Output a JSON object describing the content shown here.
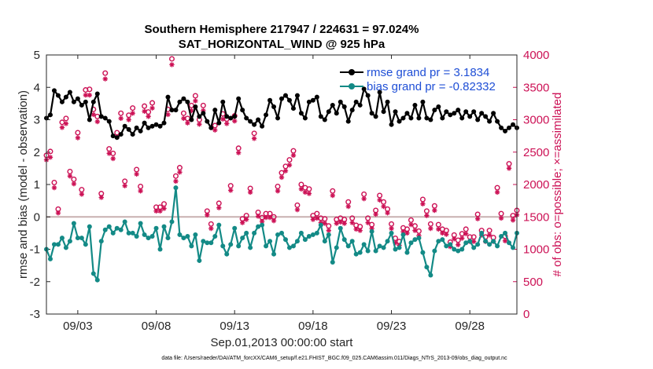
{
  "chart_data": {
    "type": "line",
    "title": [
      "Southern Hemisphere 217947 / 224631 = 97.024%",
      "SAT_HORIZONTAL_WIND @ 925 hPa"
    ],
    "xlabel": "Sep.01,2013 00:00:00 start",
    "ylabel_left": "rmse and bias (model - observation)",
    "ylabel_right": "# of obs: o=possible; ×=assimilated",
    "xlim": [
      1,
      31
    ],
    "ylim_left": [
      -3,
      5
    ],
    "ylim_right": [
      0,
      4000
    ],
    "x_ticks": [
      {
        "x": 3,
        "label": "09/03"
      },
      {
        "x": 8,
        "label": "09/08"
      },
      {
        "x": 13,
        "label": "09/13"
      },
      {
        "x": 18,
        "label": "09/18"
      },
      {
        "x": 23,
        "label": "09/23"
      },
      {
        "x": 28,
        "label": "09/28"
      }
    ],
    "y_ticks_left": [
      -3,
      -2,
      -1,
      0,
      1,
      2,
      3,
      4,
      5
    ],
    "y_ticks_right": [
      0,
      500,
      1000,
      1500,
      2000,
      2500,
      3000,
      3500,
      4000
    ],
    "legend": [
      {
        "label": "rmse grand pr = 3.1834",
        "color": "#000000"
      },
      {
        "label": "bias grand pr = -0.82332",
        "color": "#138a86"
      }
    ],
    "colors": {
      "rmse": "#000000",
      "bias": "#138a86",
      "obs": "#cc1155",
      "zero_line": "#c8b0b0",
      "right_axis": "#cc1155"
    },
    "series": [
      {
        "name": "rmse",
        "axis": "left",
        "x": [
          1.0,
          1.25,
          1.5,
          1.75,
          2.0,
          2.25,
          2.5,
          2.75,
          3.0,
          3.25,
          3.5,
          3.75,
          4.0,
          4.25,
          4.5,
          4.75,
          5.0,
          5.25,
          5.5,
          5.75,
          6.0,
          6.25,
          6.5,
          6.75,
          7.0,
          7.25,
          7.5,
          7.75,
          8.0,
          8.25,
          8.5,
          8.75,
          9.0,
          9.25,
          9.5,
          9.75,
          10.0,
          10.25,
          10.5,
          10.75,
          11.0,
          11.25,
          11.5,
          11.75,
          12.0,
          12.25,
          12.5,
          12.75,
          13.0,
          13.25,
          13.5,
          13.75,
          14.0,
          14.25,
          14.5,
          14.75,
          15.0,
          15.25,
          15.5,
          15.75,
          16.0,
          16.25,
          16.5,
          16.75,
          17.0,
          17.25,
          17.5,
          17.75,
          18.0,
          18.25,
          18.5,
          18.75,
          19.0,
          19.25,
          19.5,
          19.75,
          20.0,
          20.25,
          20.5,
          20.75,
          21.0,
          21.25,
          21.5,
          21.75,
          22.0,
          22.25,
          22.5,
          22.75,
          23.0,
          23.25,
          23.5,
          23.75,
          24.0,
          24.25,
          24.5,
          24.75,
          25.0,
          25.25,
          25.5,
          25.75,
          26.0,
          26.25,
          26.5,
          26.75,
          27.0,
          27.25,
          27.5,
          27.75,
          28.0,
          28.25,
          28.5,
          28.75,
          29.0,
          29.25,
          29.5,
          29.75,
          30.0,
          30.25,
          30.5,
          30.75,
          31.0
        ],
        "values": [
          3.05,
          3.15,
          3.9,
          3.75,
          3.55,
          3.7,
          3.85,
          3.55,
          3.65,
          3.45,
          3.55,
          3.0,
          3.55,
          3.8,
          3.1,
          3.05,
          2.95,
          2.5,
          2.45,
          2.55,
          2.8,
          2.7,
          2.55,
          2.75,
          2.65,
          2.9,
          2.75,
          2.8,
          2.85,
          2.8,
          2.9,
          3.7,
          3.3,
          3.3,
          3.55,
          3.65,
          3.55,
          3.0,
          3.4,
          3.1,
          3.2,
          2.95,
          2.75,
          3.3,
          2.9,
          3.55,
          3.1,
          3.05,
          3.1,
          3.65,
          3.3,
          3.05,
          2.95,
          2.85,
          3.0,
          2.8,
          3.15,
          3.6,
          3.4,
          3.05,
          3.65,
          3.75,
          3.6,
          3.35,
          3.75,
          3.2,
          3.05,
          3.55,
          3.6,
          3.7,
          3.1,
          3.0,
          3.25,
          3.45,
          3.2,
          3.55,
          3.4,
          2.95,
          3.3,
          3.55,
          3.45,
          3.95,
          3.75,
          3.2,
          3.1,
          3.85,
          3.25,
          3.55,
          2.85,
          3.25,
          2.95,
          3.05,
          3.2,
          3.05,
          3.45,
          3.05,
          3.55,
          3.05,
          3.0,
          3.3,
          3.4,
          3.05,
          3.25,
          3.15,
          3.2,
          3.3,
          3.05,
          3.25,
          3.1,
          3.25,
          3.0,
          3.2,
          3.1,
          2.95,
          3.2,
          2.95,
          2.75,
          2.65,
          2.75,
          2.85,
          2.75
        ]
      },
      {
        "name": "bias",
        "axis": "left",
        "x": [
          1.0,
          1.25,
          1.5,
          1.75,
          2.0,
          2.25,
          2.5,
          2.75,
          3.0,
          3.25,
          3.5,
          3.75,
          4.0,
          4.25,
          4.5,
          4.75,
          5.0,
          5.25,
          5.5,
          5.75,
          6.0,
          6.25,
          6.5,
          6.75,
          7.0,
          7.25,
          7.5,
          7.75,
          8.0,
          8.25,
          8.5,
          8.75,
          9.0,
          9.25,
          9.5,
          9.75,
          10.0,
          10.25,
          10.5,
          10.75,
          11.0,
          11.25,
          11.5,
          11.75,
          12.0,
          12.25,
          12.5,
          12.75,
          13.0,
          13.25,
          13.5,
          13.75,
          14.0,
          14.25,
          14.5,
          14.75,
          15.0,
          15.25,
          15.5,
          15.75,
          16.0,
          16.25,
          16.5,
          16.75,
          17.0,
          17.25,
          17.5,
          17.75,
          18.0,
          18.25,
          18.5,
          18.75,
          19.0,
          19.25,
          19.5,
          19.75,
          20.0,
          20.25,
          20.5,
          20.75,
          21.0,
          21.25,
          21.5,
          21.75,
          22.0,
          22.25,
          22.5,
          22.75,
          23.0,
          23.25,
          23.5,
          23.75,
          24.0,
          24.25,
          24.5,
          24.75,
          25.0,
          25.25,
          25.5,
          25.75,
          26.0,
          26.25,
          26.5,
          26.75,
          27.0,
          27.25,
          27.5,
          27.75,
          28.0,
          28.25,
          28.5,
          28.75,
          29.0,
          29.25,
          29.5,
          29.75,
          30.0,
          30.25,
          30.5,
          30.75,
          31.0
        ],
        "values": [
          -1.0,
          -1.3,
          -0.85,
          -0.85,
          -0.65,
          -0.95,
          -0.75,
          -0.2,
          -0.65,
          -0.65,
          -0.85,
          -0.3,
          -1.75,
          -1.95,
          -0.75,
          -0.4,
          -0.3,
          -0.5,
          -0.35,
          -0.4,
          -0.15,
          -0.5,
          -0.5,
          -0.6,
          -0.2,
          -0.55,
          -0.65,
          -0.6,
          -0.35,
          -1.0,
          -0.3,
          -0.65,
          -0.15,
          0.9,
          -0.55,
          -0.65,
          -0.6,
          -0.9,
          -0.55,
          -1.35,
          -0.75,
          -0.8,
          -0.8,
          -0.6,
          -0.25,
          -0.9,
          -1.15,
          -0.85,
          -0.35,
          -0.9,
          -0.65,
          -0.5,
          -0.95,
          -0.5,
          -0.3,
          -0.25,
          -0.9,
          -0.75,
          -1.15,
          -0.55,
          -0.5,
          -0.7,
          -0.95,
          -0.9,
          -0.75,
          -0.5,
          -0.7,
          -0.6,
          -0.55,
          -0.5,
          -0.25,
          -0.75,
          -0.55,
          -1.4,
          -0.95,
          -0.35,
          -0.7,
          -0.9,
          -0.75,
          -1.15,
          -1.1,
          -0.85,
          -1.05,
          -0.45,
          -1.05,
          -0.9,
          -0.95,
          -0.75,
          -0.5,
          -1.0,
          -0.95,
          -0.55,
          -1.1,
          -0.8,
          -0.7,
          -0.65,
          -1.1,
          -1.55,
          -1.8,
          -1.05,
          -0.75,
          -0.7,
          -0.9,
          -0.85,
          -1.0,
          -1.05,
          -1.0,
          -0.8,
          -0.75,
          -0.95,
          -0.85,
          -0.5,
          -0.75,
          -0.85,
          -0.75,
          -0.9,
          -0.6,
          -0.5,
          -0.8,
          -0.95,
          -0.5
        ]
      },
      {
        "name": "possible",
        "axis": "right",
        "marker": "o",
        "x": [
          1.0,
          1.25,
          1.5,
          1.75,
          2.0,
          2.25,
          2.5,
          2.75,
          3.0,
          3.25,
          3.5,
          3.75,
          4.0,
          4.25,
          4.5,
          4.75,
          5.0,
          5.25,
          5.5,
          5.75,
          6.0,
          6.25,
          6.5,
          6.75,
          7.0,
          7.25,
          7.5,
          7.75,
          8.0,
          8.25,
          8.5,
          8.75,
          9.0,
          9.25,
          9.5,
          9.75,
          10.0,
          10.25,
          10.5,
          10.75,
          11.0,
          11.25,
          11.5,
          11.75,
          12.0,
          12.25,
          12.5,
          12.75,
          13.0,
          13.25,
          13.5,
          13.75,
          14.0,
          14.25,
          14.5,
          14.75,
          15.0,
          15.25,
          15.5,
          15.75,
          16.0,
          16.25,
          16.5,
          16.75,
          17.0,
          17.25,
          17.5,
          17.75,
          18.0,
          18.25,
          18.5,
          18.75,
          19.0,
          19.25,
          19.5,
          19.75,
          20.0,
          20.25,
          20.5,
          20.75,
          21.0,
          21.25,
          21.5,
          21.75,
          22.0,
          22.25,
          22.5,
          22.75,
          23.0,
          23.25,
          23.5,
          23.75,
          24.0,
          24.25,
          24.5,
          24.75,
          25.0,
          25.25,
          25.5,
          25.75,
          26.0,
          26.25,
          26.5,
          26.75,
          27.0,
          27.25,
          27.5,
          27.75,
          28.0,
          28.25,
          28.5,
          28.75,
          29.0,
          29.25,
          29.5,
          29.75,
          30.0,
          30.25,
          30.5,
          30.75,
          31.0
        ],
        "values": [
          2450,
          2510,
          2030,
          1620,
          2960,
          3020,
          2200,
          2080,
          2800,
          1920,
          3460,
          3470,
          3160,
          3050,
          1860,
          3720,
          2550,
          2480,
          2800,
          3100,
          2050,
          3070,
          3180,
          2230,
          1970,
          3210,
          3120,
          3260,
          1650,
          1650,
          1700,
          3160,
          3940,
          2130,
          2260,
          3100,
          3020,
          3220,
          3370,
          3000,
          3220,
          1590,
          1390,
          2910,
          1710,
          3090,
          3010,
          1980,
          3060,
          2560,
          1470,
          1520,
          1940,
          2790,
          1570,
          1490,
          1550,
          1550,
          1500,
          1970,
          2180,
          2280,
          2380,
          2520,
          1680,
          2000,
          1950,
          1930,
          1520,
          1550,
          1480,
          1470,
          1360,
          1900,
          1460,
          1480,
          1460,
          1730,
          1480,
          1370,
          1350,
          1850,
          1480,
          1380,
          1600,
          1830,
          1730,
          1620,
          1390,
          1170,
          1120,
          1330,
          1310,
          1450,
          1360,
          1280,
          1770,
          1590,
          1390,
          1670,
          1380,
          1310,
          1290,
          1110,
          1220,
          1140,
          1240,
          1310,
          1190,
          1190,
          1540,
          1290,
          1190,
          1290,
          1180,
          1950,
          1550,
          1200,
          2320,
          1520,
          1600
        ]
      },
      {
        "name": "assimilated",
        "axis": "right",
        "marker": "x",
        "x": [
          1.0,
          1.25,
          1.5,
          1.75,
          2.0,
          2.25,
          2.5,
          2.75,
          3.0,
          3.25,
          3.5,
          3.75,
          4.0,
          4.25,
          4.5,
          4.75,
          5.0,
          5.25,
          5.5,
          5.75,
          6.0,
          6.25,
          6.5,
          6.75,
          7.0,
          7.25,
          7.5,
          7.75,
          8.0,
          8.25,
          8.5,
          8.75,
          9.0,
          9.25,
          9.5,
          9.75,
          10.0,
          10.25,
          10.5,
          10.75,
          11.0,
          11.25,
          11.5,
          11.75,
          12.0,
          12.25,
          12.5,
          12.75,
          13.0,
          13.25,
          13.5,
          13.75,
          14.0,
          14.25,
          14.5,
          14.75,
          15.0,
          15.25,
          15.5,
          15.75,
          16.0,
          16.25,
          16.5,
          16.75,
          17.0,
          17.25,
          17.5,
          17.75,
          18.0,
          18.25,
          18.5,
          18.75,
          19.0,
          19.25,
          19.5,
          19.75,
          20.0,
          20.25,
          20.5,
          20.75,
          21.0,
          21.25,
          21.5,
          21.75,
          22.0,
          22.25,
          22.5,
          22.75,
          23.0,
          23.25,
          23.5,
          23.75,
          24.0,
          24.25,
          24.5,
          24.75,
          25.0,
          25.25,
          25.5,
          25.75,
          26.0,
          26.25,
          26.5,
          26.75,
          27.0,
          27.25,
          27.5,
          27.75,
          28.0,
          28.25,
          28.5,
          28.75,
          29.0,
          29.25,
          29.5,
          29.75,
          30.0,
          30.25,
          30.5,
          30.75,
          31.0
        ],
        "values": [
          2380,
          2420,
          1950,
          1560,
          2880,
          2940,
          2130,
          2010,
          2720,
          1850,
          3380,
          3380,
          3080,
          2970,
          1800,
          3630,
          2480,
          2400,
          2730,
          3020,
          1980,
          3000,
          3100,
          2160,
          1900,
          3130,
          3050,
          3180,
          1590,
          1590,
          1630,
          3080,
          3850,
          2050,
          2190,
          3020,
          2950,
          3140,
          3290,
          2930,
          3140,
          1530,
          1320,
          2840,
          1640,
          3010,
          2940,
          1910,
          2980,
          2490,
          1410,
          1460,
          1880,
          2710,
          1510,
          1430,
          1490,
          1490,
          1440,
          1900,
          2110,
          2210,
          2300,
          2450,
          1610,
          1930,
          1880,
          1860,
          1460,
          1480,
          1410,
          1400,
          1290,
          1830,
          1400,
          1420,
          1400,
          1660,
          1410,
          1310,
          1290,
          1780,
          1410,
          1320,
          1540,
          1760,
          1660,
          1560,
          1320,
          1100,
          1060,
          1270,
          1250,
          1380,
          1290,
          1210,
          1700,
          1520,
          1320,
          1600,
          1310,
          1250,
          1230,
          1040,
          1160,
          1070,
          1170,
          1240,
          1120,
          1120,
          1470,
          1220,
          1120,
          1220,
          1120,
          1880,
          1480,
          1130,
          2250,
          1450,
          1530
        ]
      }
    ]
  },
  "footer": "data file: /Users/raeder/DAI/ATM_forcXX/CAM6_setup/f.e21.FHIST_BGC.f09_025.CAM6assim.011/Diags_NTrS_2013-09/obs_diag_output.nc"
}
